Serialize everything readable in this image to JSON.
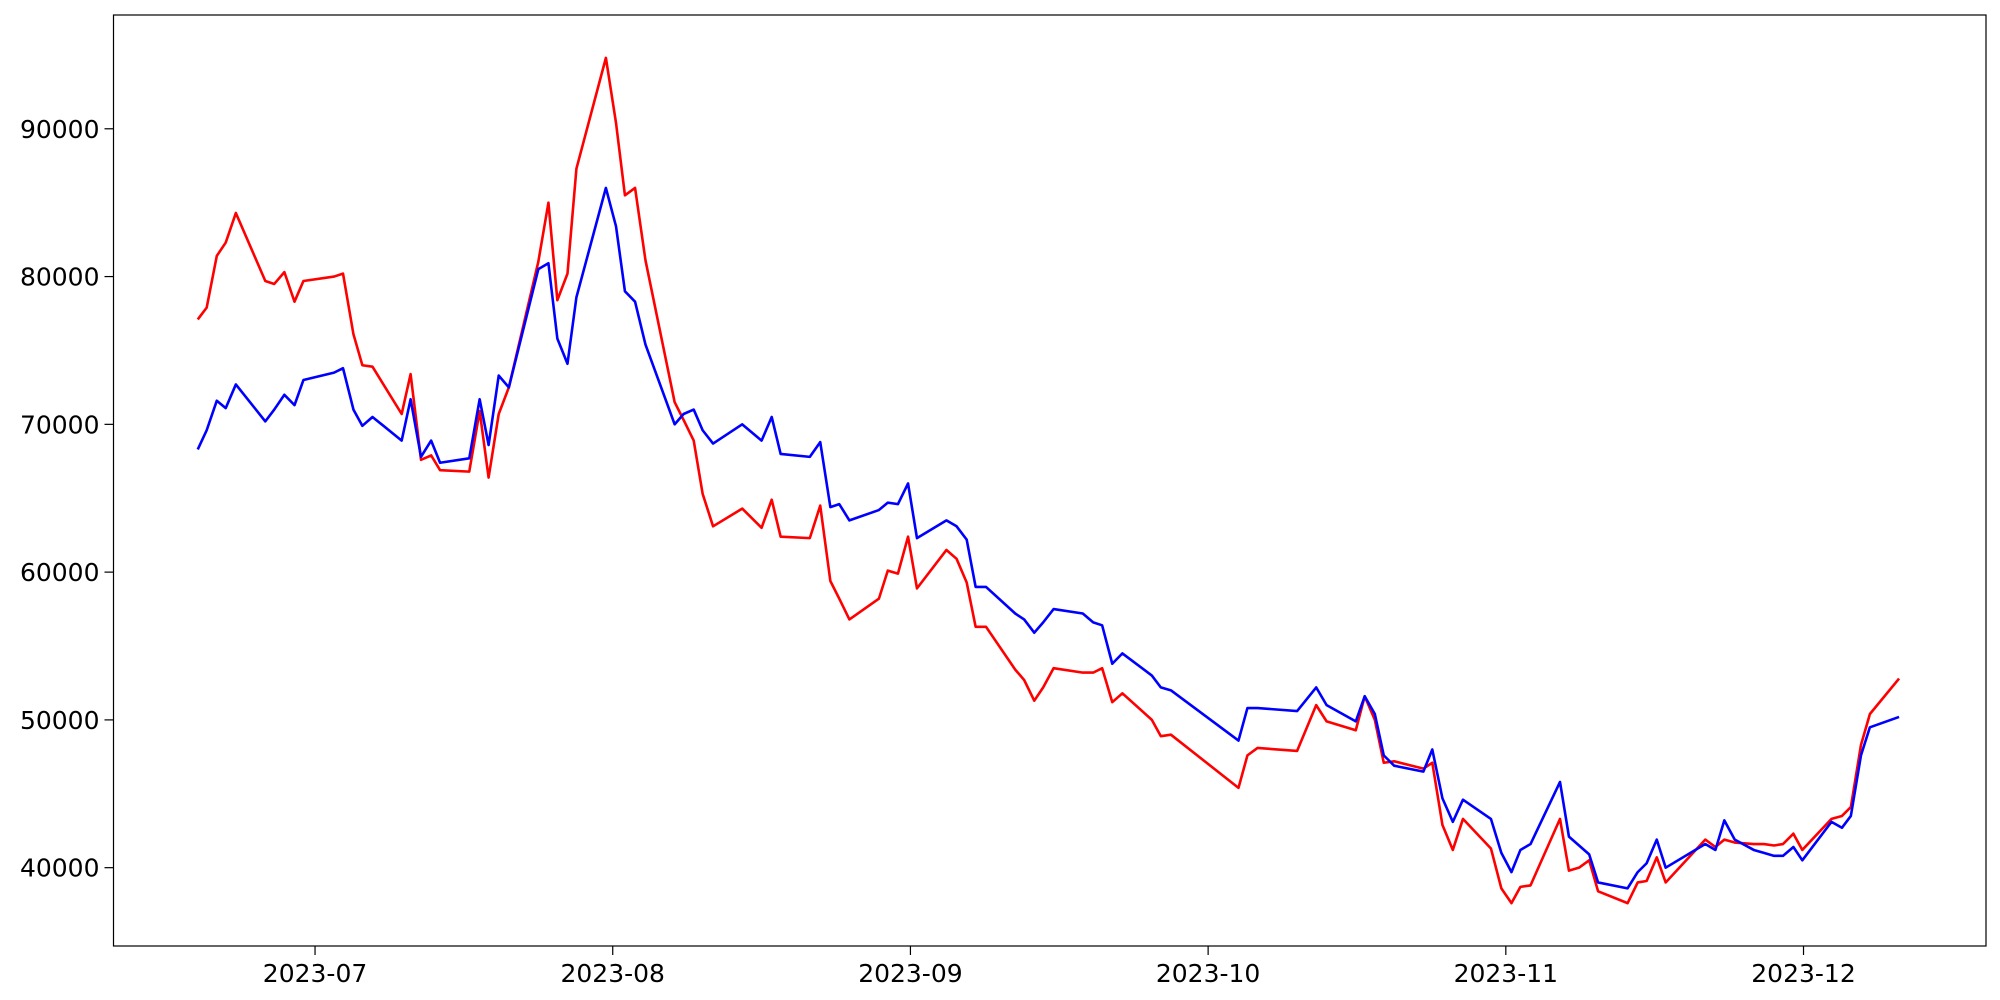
{
  "chart_data": {
    "type": "line",
    "x": [
      6.606,
      6.636,
      6.67,
      6.7,
      6.734,
      6.833,
      6.863,
      6.897,
      6.931,
      6.961,
      7.064,
      7.094,
      7.129,
      7.159,
      7.193,
      7.291,
      7.321,
      7.356,
      7.39,
      7.42,
      7.518,
      7.553,
      7.583,
      7.617,
      7.651,
      7.75,
      7.784,
      7.814,
      7.848,
      7.878,
      7.977,
      8.011,
      8.041,
      8.075,
      8.11,
      8.208,
      8.238,
      8.272,
      8.302,
      8.337,
      8.435,
      8.5,
      8.534,
      8.564,
      8.662,
      8.697,
      8.731,
      8.761,
      8.795,
      8.894,
      8.924,
      8.958,
      8.992,
      9.022,
      9.121,
      9.155,
      9.189,
      9.219,
      9.254,
      9.352,
      9.382,
      9.416,
      9.446,
      9.481,
      9.579,
      9.614,
      9.644,
      9.678,
      9.712,
      9.811,
      9.841,
      9.875,
      10.102,
      10.132,
      10.166,
      10.299,
      10.363,
      10.398,
      10.496,
      10.526,
      10.56,
      10.59,
      10.625,
      10.723,
      10.753,
      10.787,
      10.822,
      10.856,
      10.95,
      10.985,
      11.019,
      11.049,
      11.083,
      11.182,
      11.212,
      11.246,
      11.28,
      11.31,
      11.409,
      11.443,
      11.473,
      11.507,
      11.537,
      11.67,
      11.704,
      11.734,
      11.769,
      11.833,
      11.867,
      11.901,
      11.931,
      11.966,
      11.996,
      12.094,
      12.129,
      12.159,
      12.193,
      12.223,
      12.321
    ],
    "series": [
      {
        "color": "#ff0000",
        "values": [
          77100,
          77900,
          81400,
          82300,
          84300,
          79700,
          79500,
          80300,
          78300,
          79700,
          80000,
          80200,
          76100,
          74000,
          73900,
          70700,
          73400,
          67600,
          67900,
          66900,
          66800,
          70900,
          66400,
          70700,
          72500,
          81000,
          85000,
          78400,
          80200,
          87300,
          94800,
          90400,
          85500,
          86000,
          81100,
          71500,
          70300,
          68900,
          65300,
          63100,
          64300,
          63000,
          64900,
          62400,
          62300,
          64500,
          59400,
          58200,
          56800,
          58200,
          60100,
          59900,
          62400,
          58900,
          61500,
          60900,
          59300,
          56300,
          56300,
          53400,
          52700,
          51300,
          52200,
          53500,
          53200,
          53200,
          53500,
          51200,
          51800,
          50000,
          48900,
          49000,
          45400,
          47600,
          48100,
          47900,
          51000,
          49900,
          49300,
          51600,
          50000,
          47100,
          47200,
          46700,
          47100,
          42900,
          41200,
          43300,
          41300,
          38600,
          37600,
          38700,
          38800,
          43300,
          39800,
          40000,
          40500,
          38400,
          37600,
          39000,
          39100,
          40700,
          39000,
          41900,
          41400,
          41900,
          41700,
          41600,
          41600,
          41500,
          41600,
          42300,
          41200,
          43300,
          43500,
          44100,
          48300,
          50400,
          52800
        ]
      },
      {
        "color": "#0000ff",
        "values": [
          68300,
          69600,
          71600,
          71100,
          72700,
          70200,
          71000,
          72000,
          71300,
          73000,
          73500,
          73800,
          71000,
          69900,
          70500,
          68900,
          71700,
          67800,
          68900,
          67400,
          67700,
          71700,
          68600,
          73300,
          72500,
          80500,
          80900,
          75800,
          74100,
          78600,
          86000,
          83400,
          79000,
          78300,
          75400,
          70000,
          70700,
          71000,
          69600,
          68700,
          70000,
          68900,
          70500,
          68000,
          67800,
          68800,
          64400,
          64600,
          63500,
          64200,
          64700,
          64600,
          66000,
          62300,
          63500,
          63100,
          62200,
          59000,
          59000,
          57200,
          56800,
          55900,
          56600,
          57500,
          57200,
          56600,
          56400,
          53800,
          54500,
          53000,
          52200,
          52000,
          48600,
          50800,
          50800,
          50600,
          52200,
          51000,
          49900,
          51600,
          50400,
          47600,
          46900,
          46500,
          48000,
          44700,
          43100,
          44600,
          43300,
          41000,
          39700,
          41200,
          41600,
          45800,
          42100,
          41500,
          40900,
          39000,
          38600,
          39700,
          40300,
          41900,
          40000,
          41600,
          41200,
          43200,
          41900,
          41200,
          41000,
          40800,
          40800,
          41400,
          40500,
          43100,
          42700,
          43500,
          47600,
          49500,
          50200
        ]
      }
    ],
    "xlim": [
      6.323,
      12.613
    ],
    "xticks": [
      {
        "value": 7,
        "label": "2023-07"
      },
      {
        "value": 8,
        "label": "2023-08"
      },
      {
        "value": 9,
        "label": "2023-09"
      },
      {
        "value": 10,
        "label": "2023-10"
      },
      {
        "value": 11,
        "label": "2023-11"
      },
      {
        "value": 12,
        "label": "2023-12"
      }
    ],
    "ylim": [
      34700,
      97700
    ],
    "yticks": [
      40000,
      50000,
      60000,
      70000,
      80000,
      90000
    ],
    "grid": false
  }
}
